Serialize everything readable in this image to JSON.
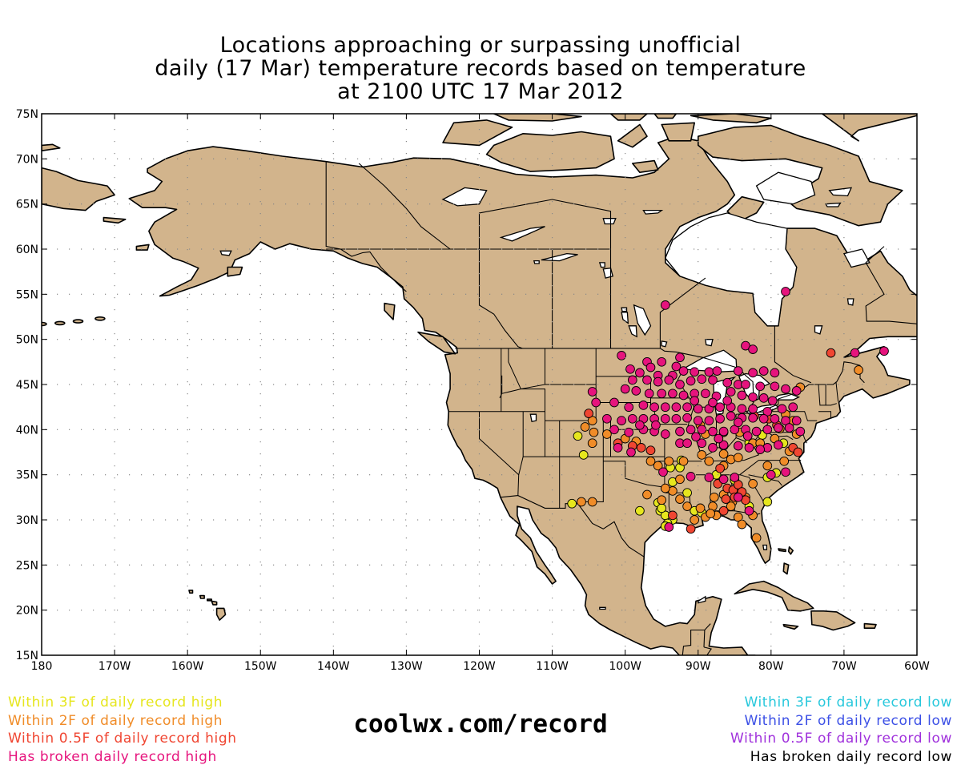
{
  "title": {
    "line1": "Locations approaching or surpassing unofficial",
    "line2": "daily (17 Mar) temperature records based on temperature",
    "line3": "at 2100 UTC 17 Mar 2012"
  },
  "map": {
    "lon_range": [
      -180,
      -60
    ],
    "lat_range": [
      15,
      75
    ],
    "lat_labels": [
      "75N",
      "70N",
      "65N",
      "60N",
      "55N",
      "50N",
      "45N",
      "40N",
      "35N",
      "30N",
      "25N",
      "20N",
      "15N"
    ],
    "lon_labels": [
      "180",
      "170W",
      "160W",
      "150W",
      "140W",
      "130W",
      "120W",
      "110W",
      "100W",
      "90W",
      "80W",
      "70W",
      "60W"
    ],
    "land_color": "#D2B48C",
    "ocean_color": "#FFFFFF"
  },
  "legend": {
    "high": [
      {
        "label": "Within 3F of daily record high",
        "color": "#E6E61E",
        "key": "within3"
      },
      {
        "label": "Within 2F of daily record high",
        "color": "#F08C28",
        "key": "within2"
      },
      {
        "label": "Within 0.5F of daily record high",
        "color": "#F04632",
        "key": "within05"
      },
      {
        "label": "Has broken daily record high",
        "color": "#E6147D",
        "key": "broken"
      }
    ],
    "low": [
      {
        "label": "Within 3F of daily record low",
        "color": "#28C8DC"
      },
      {
        "label": "Within 2F of daily record low",
        "color": "#3C50E6"
      },
      {
        "label": "Within 0.5F of daily record low",
        "color": "#A032DC"
      },
      {
        "label": "Has broken daily record low",
        "color": "#000000"
      }
    ]
  },
  "site": "coolwx.com/record",
  "stations": {
    "broken": [
      [
        -78,
        55.3
      ],
      [
        -94.5,
        53.8
      ],
      [
        -83.5,
        49.3
      ],
      [
        -82.5,
        48.9
      ],
      [
        -68.5,
        48.5
      ],
      [
        -64.5,
        48.7
      ],
      [
        -100.5,
        48.2
      ],
      [
        -97,
        47.5
      ],
      [
        -92.5,
        48
      ],
      [
        -95,
        47.5
      ],
      [
        -93,
        47
      ],
      [
        -96.5,
        46.9
      ],
      [
        -99.3,
        46.7
      ],
      [
        -98,
        46.3
      ],
      [
        -95.5,
        46
      ],
      [
        -93.5,
        46
      ],
      [
        -92,
        46.5
      ],
      [
        -90.5,
        46.4
      ],
      [
        -88.5,
        46.4
      ],
      [
        -87.4,
        46.5
      ],
      [
        -84.5,
        46.5
      ],
      [
        -82.5,
        46.3
      ],
      [
        -81,
        46.5
      ],
      [
        -79.5,
        46.3
      ],
      [
        -99,
        45.5
      ],
      [
        -97,
        45.5
      ],
      [
        -95.5,
        45.3
      ],
      [
        -94,
        45.5
      ],
      [
        -92.5,
        45
      ],
      [
        -91,
        45.4
      ],
      [
        -89.5,
        45.6
      ],
      [
        -88,
        45.5
      ],
      [
        -86,
        45.2
      ],
      [
        -84.5,
        45
      ],
      [
        -83.5,
        45
      ],
      [
        -81.5,
        44.8
      ],
      [
        -79.5,
        44.8
      ],
      [
        -78,
        44.5
      ],
      [
        -76.5,
        44.3
      ],
      [
        -100,
        44.5
      ],
      [
        -98.5,
        44.3
      ],
      [
        -96.7,
        44
      ],
      [
        -95,
        44
      ],
      [
        -93.5,
        44
      ],
      [
        -92,
        43.8
      ],
      [
        -90.5,
        44
      ],
      [
        -89,
        44
      ],
      [
        -87.5,
        43.7
      ],
      [
        -85.5,
        44.2
      ],
      [
        -84,
        43.8
      ],
      [
        -82.5,
        43.6
      ],
      [
        -81,
        43.5
      ],
      [
        -79.8,
        43.2
      ],
      [
        -101.5,
        43
      ],
      [
        -99.5,
        42.5
      ],
      [
        -97.5,
        42.7
      ],
      [
        -96,
        42.5
      ],
      [
        -94.5,
        42.5
      ],
      [
        -93,
        42.5
      ],
      [
        -91.5,
        42.5
      ],
      [
        -90,
        42.3
      ],
      [
        -88.5,
        42.3
      ],
      [
        -87,
        42.5
      ],
      [
        -85.5,
        42.5
      ],
      [
        -84,
        42.3
      ],
      [
        -82.5,
        42.3
      ],
      [
        -80.5,
        42
      ],
      [
        -78.5,
        42.3
      ],
      [
        -77,
        42.5
      ],
      [
        -104.5,
        44.2
      ],
      [
        -102.5,
        41.2
      ],
      [
        -100.5,
        41
      ],
      [
        -99,
        41.2
      ],
      [
        -97.5,
        41.2
      ],
      [
        -96,
        41.2
      ],
      [
        -94.5,
        41.2
      ],
      [
        -93,
        41.2
      ],
      [
        -91.5,
        41.3
      ],
      [
        -90,
        41
      ],
      [
        -88.5,
        41
      ],
      [
        -87,
        41.2
      ],
      [
        -85.5,
        41.5
      ],
      [
        -84,
        41.3
      ],
      [
        -82.5,
        41.3
      ],
      [
        -81,
        41.2
      ],
      [
        -79.5,
        41.2
      ],
      [
        -78,
        41
      ],
      [
        -76.5,
        41
      ],
      [
        -101.5,
        40
      ],
      [
        -99.5,
        39.7
      ],
      [
        -97.5,
        40
      ],
      [
        -96,
        39.8
      ],
      [
        -94.5,
        39.5
      ],
      [
        -92.5,
        39.8
      ],
      [
        -91,
        40
      ],
      [
        -89.5,
        40
      ],
      [
        -88,
        39.8
      ],
      [
        -86.5,
        39.8
      ],
      [
        -85,
        40
      ],
      [
        -83.5,
        40
      ],
      [
        -82,
        39.8
      ],
      [
        -80.5,
        40
      ],
      [
        -79,
        40.2
      ],
      [
        -77.5,
        40.2
      ],
      [
        -76,
        39.8
      ],
      [
        -104,
        43
      ],
      [
        -101,
        38
      ],
      [
        -99.2,
        37.5
      ],
      [
        -92.5,
        38.5
      ],
      [
        -91.5,
        38.5
      ],
      [
        -89.5,
        38.5
      ],
      [
        -88,
        38
      ],
      [
        -86.5,
        38.3
      ],
      [
        -84.5,
        38.2
      ],
      [
        -83,
        38
      ],
      [
        -80.5,
        38
      ],
      [
        -79,
        38.3
      ],
      [
        -94.8,
        35.3
      ],
      [
        -91,
        34.8
      ],
      [
        -88.5,
        34.7
      ],
      [
        -86.5,
        34.5
      ],
      [
        -85,
        34.7
      ],
      [
        -80,
        35
      ],
      [
        -78,
        35.3
      ],
      [
        -84.5,
        32.5
      ],
      [
        -83,
        31
      ],
      [
        -94,
        29.2
      ],
      [
        -90.5,
        43.2
      ],
      [
        -88,
        43
      ],
      [
        -86,
        43.2
      ],
      [
        -84.5,
        40.8
      ],
      [
        -83.2,
        39.3
      ],
      [
        -81.5,
        37.8
      ],
      [
        -87.2,
        39
      ],
      [
        -98,
        40.5
      ],
      [
        -95.8,
        40.5
      ],
      [
        -90.3,
        39.2
      ]
    ],
    "within05": [
      [
        -71.8,
        48.5
      ],
      [
        -105,
        41.8
      ],
      [
        -101,
        38.5
      ],
      [
        -99,
        38.2
      ],
      [
        -97.8,
        38
      ],
      [
        -96.5,
        37.7
      ],
      [
        -87.3,
        34
      ],
      [
        -86,
        33.5
      ],
      [
        -85.2,
        33.3
      ],
      [
        -84.5,
        33.9
      ],
      [
        -84,
        33.1
      ],
      [
        -85,
        32.5
      ],
      [
        -86.2,
        32.3
      ],
      [
        -83.5,
        32.2
      ],
      [
        -86.5,
        31
      ],
      [
        -82.3,
        41.5
      ],
      [
        -80.3,
        41.2
      ],
      [
        -79.2,
        40.5
      ],
      [
        -77,
        38
      ],
      [
        -76.3,
        37.5
      ],
      [
        -87,
        35.7
      ],
      [
        -91,
        29
      ],
      [
        -93.5,
        30.5
      ]
    ],
    "within2": [
      [
        -68,
        46.6
      ],
      [
        -76,
        44.7
      ],
      [
        -78,
        41.7
      ],
      [
        -77,
        41
      ],
      [
        -78.8,
        40.1
      ],
      [
        -76.5,
        39.5
      ],
      [
        -79.5,
        39
      ],
      [
        -77.5,
        37.6
      ],
      [
        -78.2,
        36.5
      ],
      [
        -80.5,
        36
      ],
      [
        -82.5,
        34
      ],
      [
        -83.5,
        32.5
      ],
      [
        -85.3,
        32
      ],
      [
        -82.5,
        30.5
      ],
      [
        -84.5,
        30.3
      ],
      [
        -84,
        29.5
      ],
      [
        -82,
        28
      ],
      [
        -86.5,
        32.8
      ],
      [
        -88,
        31.5
      ],
      [
        -89,
        30.3
      ],
      [
        -90.5,
        30
      ],
      [
        -91.5,
        31.5
      ],
      [
        -92.5,
        32.3
      ],
      [
        -93.5,
        33.2
      ],
      [
        -95,
        32.2
      ],
      [
        -97,
        32.8
      ],
      [
        -94,
        36.5
      ],
      [
        -92.5,
        34.5
      ],
      [
        -92,
        36.5
      ],
      [
        -95.5,
        36
      ],
      [
        -86.5,
        36
      ],
      [
        -86.5,
        37.3
      ],
      [
        -85.5,
        36.7
      ],
      [
        -84.5,
        36.9
      ],
      [
        -89.5,
        37.2
      ],
      [
        -88.5,
        36.5
      ],
      [
        -87.8,
        32.5
      ],
      [
        -87.5,
        30.5
      ],
      [
        -104.5,
        32
      ],
      [
        -106,
        32
      ],
      [
        -104.5,
        38.5
      ],
      [
        -105.5,
        40.3
      ],
      [
        -104.5,
        41
      ],
      [
        -104.3,
        39.7
      ],
      [
        -102.5,
        39.5
      ],
      [
        -100,
        39
      ],
      [
        -98.5,
        38.7
      ],
      [
        -96.5,
        36.5
      ],
      [
        -94.5,
        33.5
      ],
      [
        -89.7,
        40.5
      ],
      [
        -89,
        39.5
      ],
      [
        -86.5,
        39.7
      ],
      [
        -82.5,
        38.5
      ],
      [
        -81.5,
        38.5
      ],
      [
        -84.3,
        39.7
      ],
      [
        -88.3,
        30.7
      ],
      [
        -89.7,
        31.3
      ],
      [
        -85.5,
        31.5
      ]
    ],
    "within3": [
      [
        -106.5,
        39.3
      ],
      [
        -105.7,
        37.2
      ],
      [
        -107.3,
        31.8
      ],
      [
        -98,
        31
      ],
      [
        -95.5,
        31.9
      ],
      [
        -95.2,
        31
      ],
      [
        -94.5,
        30.5
      ],
      [
        -95,
        31.3
      ],
      [
        -93.5,
        30
      ],
      [
        -94.2,
        29.6
      ],
      [
        -93.8,
        35.8
      ],
      [
        -93.5,
        34.2
      ],
      [
        -92.5,
        35.8
      ],
      [
        -91.5,
        33
      ],
      [
        -90.5,
        31
      ],
      [
        -89.5,
        30.8
      ],
      [
        -87.5,
        35
      ],
      [
        -85,
        34.4
      ],
      [
        -80.5,
        34.7
      ],
      [
        -79.3,
        35.2
      ],
      [
        -80.5,
        32
      ],
      [
        -78.3,
        38.5
      ],
      [
        -83,
        38.5
      ],
      [
        -81.2,
        39.4
      ],
      [
        -83,
        31.5
      ],
      [
        -94.5,
        29.3
      ],
      [
        -92.3,
        36.6
      ],
      [
        -86.5,
        38.2
      ]
    ]
  }
}
